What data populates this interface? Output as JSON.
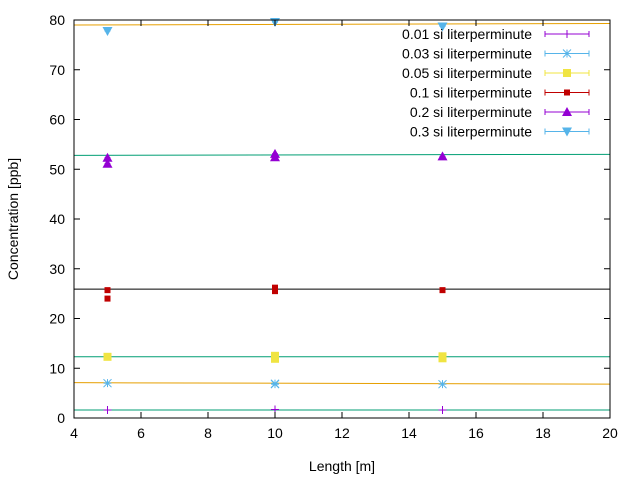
{
  "chart_data": {
    "type": "scatter",
    "title": "",
    "xlabel": "Length [m]",
    "ylabel": "Concentration [ppb]",
    "xlim": [
      4,
      20
    ],
    "ylim": [
      0,
      80
    ],
    "xticks": [
      4,
      6,
      8,
      10,
      12,
      14,
      16,
      18,
      20
    ],
    "yticks": [
      0,
      10,
      20,
      30,
      40,
      50,
      60,
      70,
      80
    ],
    "grid": false,
    "legend_position": "top-right",
    "series": [
      {
        "name": "0.01 si literperminute",
        "color": "#9400d3",
        "marker": "plus",
        "points": [
          [
            5,
            1.6
          ],
          [
            10,
            1.7
          ],
          [
            15,
            1.6
          ]
        ],
        "fit_line": {
          "color": "#009e73",
          "y_start": 1.6,
          "y_end": 1.6
        }
      },
      {
        "name": "0.03 si literperminute",
        "color": "#56b4e9",
        "marker": "star",
        "points": [
          [
            5,
            7.0
          ],
          [
            10,
            6.8
          ],
          [
            10,
            6.9
          ],
          [
            15,
            6.8
          ]
        ],
        "fit_line": {
          "color": "#e69f00",
          "y_start": 7.1,
          "y_end": 6.8
        }
      },
      {
        "name": "0.05 si literperminute",
        "color": "#f0e442",
        "marker": "square",
        "points": [
          [
            5,
            12.3
          ],
          [
            10,
            12.5
          ],
          [
            10,
            11.9
          ],
          [
            15,
            12.4
          ],
          [
            15,
            12.0
          ]
        ],
        "fit_line": {
          "color": "#009e73",
          "y_start": 12.3,
          "y_end": 12.3
        }
      },
      {
        "name": "0.1 si literperminute",
        "color": "#c00000",
        "marker": "filled-square",
        "points": [
          [
            5,
            25.7
          ],
          [
            5,
            24.0
          ],
          [
            10,
            26.2
          ],
          [
            10,
            25.5
          ],
          [
            15,
            25.7
          ]
        ],
        "fit_line": {
          "color": "#000000",
          "y_start": 25.9,
          "y_end": 25.9
        }
      },
      {
        "name": "0.2 si literperminute",
        "color": "#9400d3",
        "marker": "triangle-up",
        "points": [
          [
            5,
            52.3
          ],
          [
            5,
            51.1
          ],
          [
            10,
            53.1
          ],
          [
            10,
            52.4
          ],
          [
            15,
            52.6
          ]
        ],
        "fit_line": {
          "color": "#009e73",
          "y_start": 52.8,
          "y_end": 53.0
        }
      },
      {
        "name": "0.3 si literperminute",
        "color": "#56b4e9",
        "marker": "triangle-down",
        "points": [
          [
            5,
            77.8
          ],
          [
            10,
            79.6
          ],
          [
            15,
            78.7
          ]
        ],
        "fit_line": {
          "color": "#e69f00",
          "y_start": 79.0,
          "y_end": 79.3
        }
      }
    ]
  }
}
